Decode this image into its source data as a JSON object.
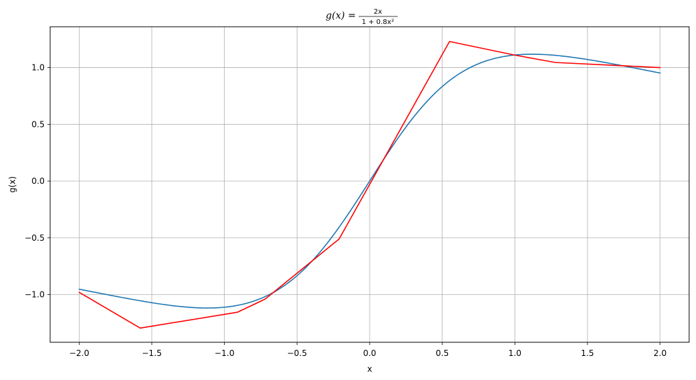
{
  "chart_data": {
    "type": "line",
    "title": {
      "lhs": "g(x) =",
      "numerator": "2x",
      "denominator": "1 + 0.8x²"
    },
    "xlabel": "x",
    "ylabel": "g(x)",
    "xlim": [
      -2.2,
      2.2
    ],
    "ylim": [
      -1.42,
      1.36
    ],
    "x_ticks": [
      -2.0,
      -1.5,
      -1.0,
      -0.5,
      0.0,
      0.5,
      1.0,
      1.5,
      2.0
    ],
    "x_tick_labels": [
      "−2.0",
      "−1.5",
      "−1.0",
      "−0.5",
      "0.0",
      "0.5",
      "1.0",
      "1.5",
      "2.0"
    ],
    "y_ticks": [
      -1.0,
      -0.5,
      0.0,
      0.5,
      1.0
    ],
    "y_tick_labels": [
      "−1.0",
      "−0.5",
      "0.0",
      "0.5",
      "1.0"
    ],
    "grid": true,
    "legend": false,
    "series": [
      {
        "function": "2x / (1 + 0.8x^2)",
        "x_range": [
          -2.0,
          2.0
        ],
        "samples": 201,
        "color": "#1f77b4"
      },
      {
        "color": "#ff0000",
        "x": [
          -2.0,
          -1.58,
          -0.91,
          -0.72,
          -0.21,
          0.55,
          1.0,
          1.28,
          2.0
        ],
        "y": [
          -0.98,
          -1.295,
          -1.155,
          -1.04,
          -0.51,
          1.23,
          1.11,
          1.045,
          1.0
        ]
      }
    ]
  }
}
